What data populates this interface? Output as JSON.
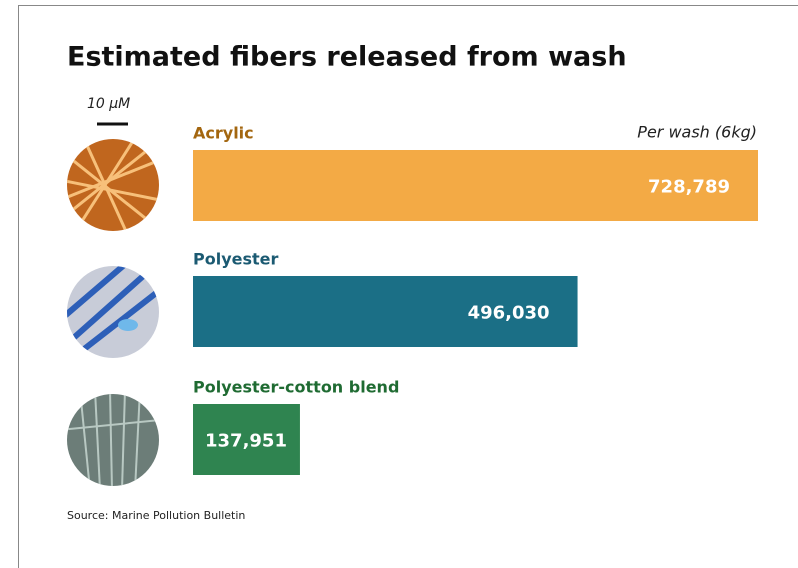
{
  "chart_data": {
    "type": "bar",
    "orientation": "horizontal",
    "title": "Estimated fibers released from wash",
    "scale_label": "10 µM",
    "annotation": "Per wash (6kg)",
    "categories": [
      "Acrylic",
      "Polyester",
      "Polyester-cotton blend"
    ],
    "values": [
      728789,
      496030,
      137951
    ],
    "value_labels": [
      "728,789",
      "496,030",
      "137,951"
    ],
    "colors": [
      "#f3aa45",
      "#1b6f86",
      "#2f8450"
    ],
    "label_colors": [
      "#a3660f",
      "#1b5a72",
      "#1f6b32"
    ],
    "source": "Source: Marine Pollution Bulletin"
  }
}
